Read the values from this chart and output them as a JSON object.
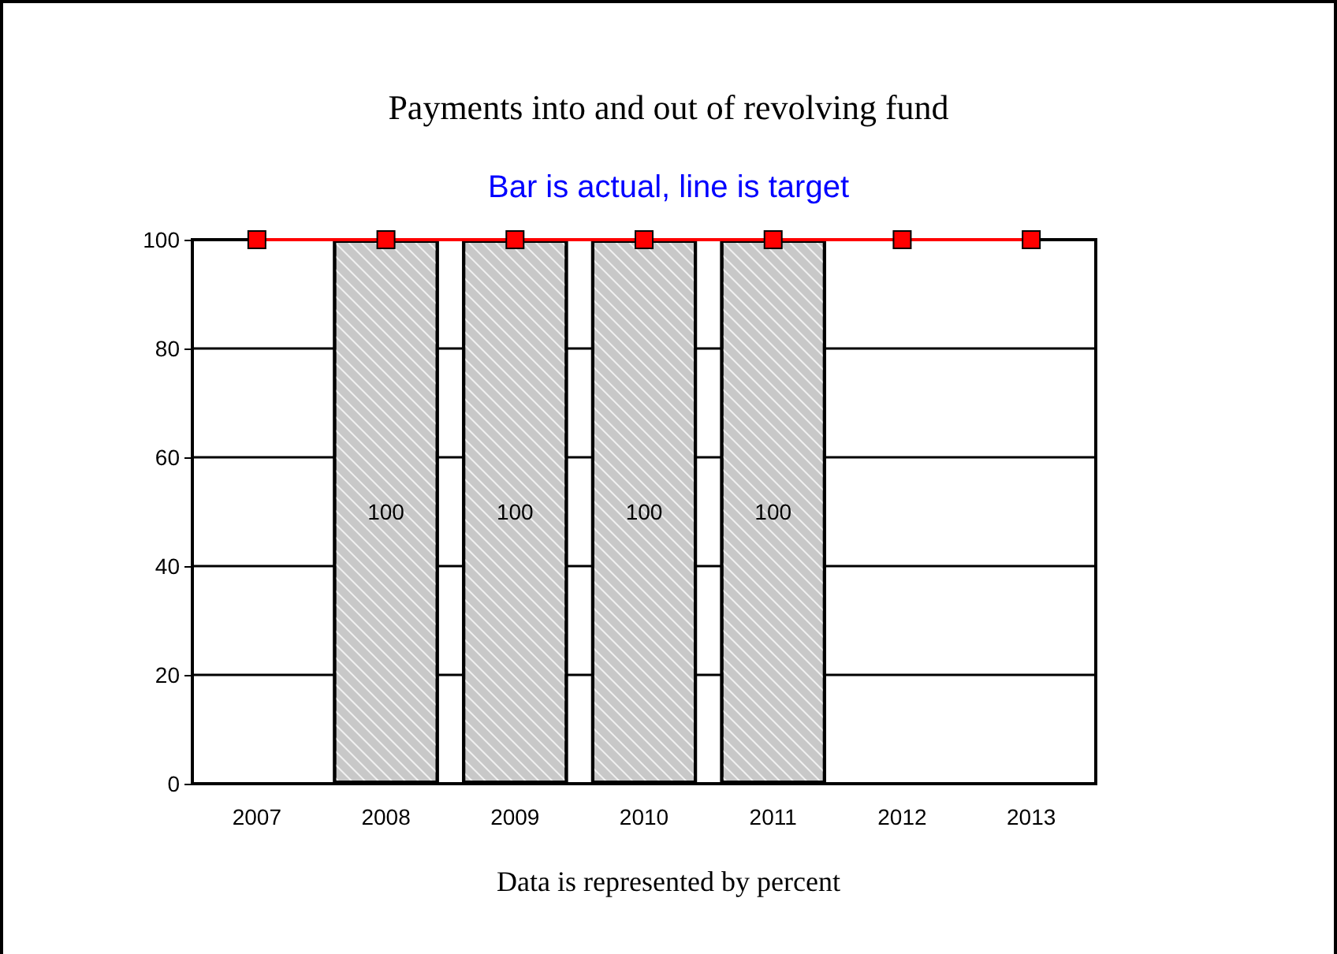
{
  "chart_data": {
    "type": "bar",
    "title": "Payments into and out of revolving fund",
    "subtitle": "Bar is actual, line is target",
    "annotations": [
      "Data is represented by percent"
    ],
    "categories": [
      "2007",
      "2008",
      "2009",
      "2010",
      "2011",
      "2012",
      "2013"
    ],
    "series": [
      {
        "color": "#c8c8c8",
        "values": [
          null,
          100,
          100,
          100,
          100,
          null,
          null
        ],
        "value_labels": [
          null,
          "100",
          "100",
          "100",
          "100",
          null,
          null
        ]
      },
      {
        "type": "line",
        "color": "#ff0000",
        "values": [
          100,
          100,
          100,
          100,
          100,
          100,
          100
        ],
        "marker": "square"
      }
    ],
    "ylim": [
      0,
      100
    ],
    "yticks": [
      0,
      20,
      40,
      60,
      80,
      100
    ],
    "grid": "y"
  }
}
